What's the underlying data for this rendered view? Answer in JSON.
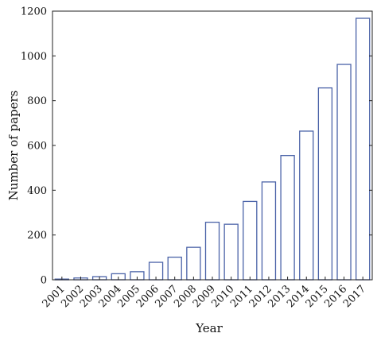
{
  "chart_data": {
    "type": "bar",
    "xlabel": "Year",
    "ylabel": "Number of papers",
    "ylim": [
      0,
      1200
    ],
    "yticks": [
      0,
      200,
      400,
      600,
      800,
      1000,
      1200
    ],
    "grid": false,
    "bar_color": "#4b63a8",
    "categories": [
      "2001",
      "2002",
      "2003",
      "2004",
      "2005",
      "2006",
      "2007",
      "2008",
      "2009",
      "2010",
      "2011",
      "2012",
      "2013",
      "2014",
      "2015",
      "2016",
      "2017"
    ],
    "values": [
      3,
      8,
      14,
      27,
      36,
      78,
      101,
      145,
      257,
      248,
      350,
      437,
      555,
      664,
      857,
      962,
      1168
    ]
  }
}
